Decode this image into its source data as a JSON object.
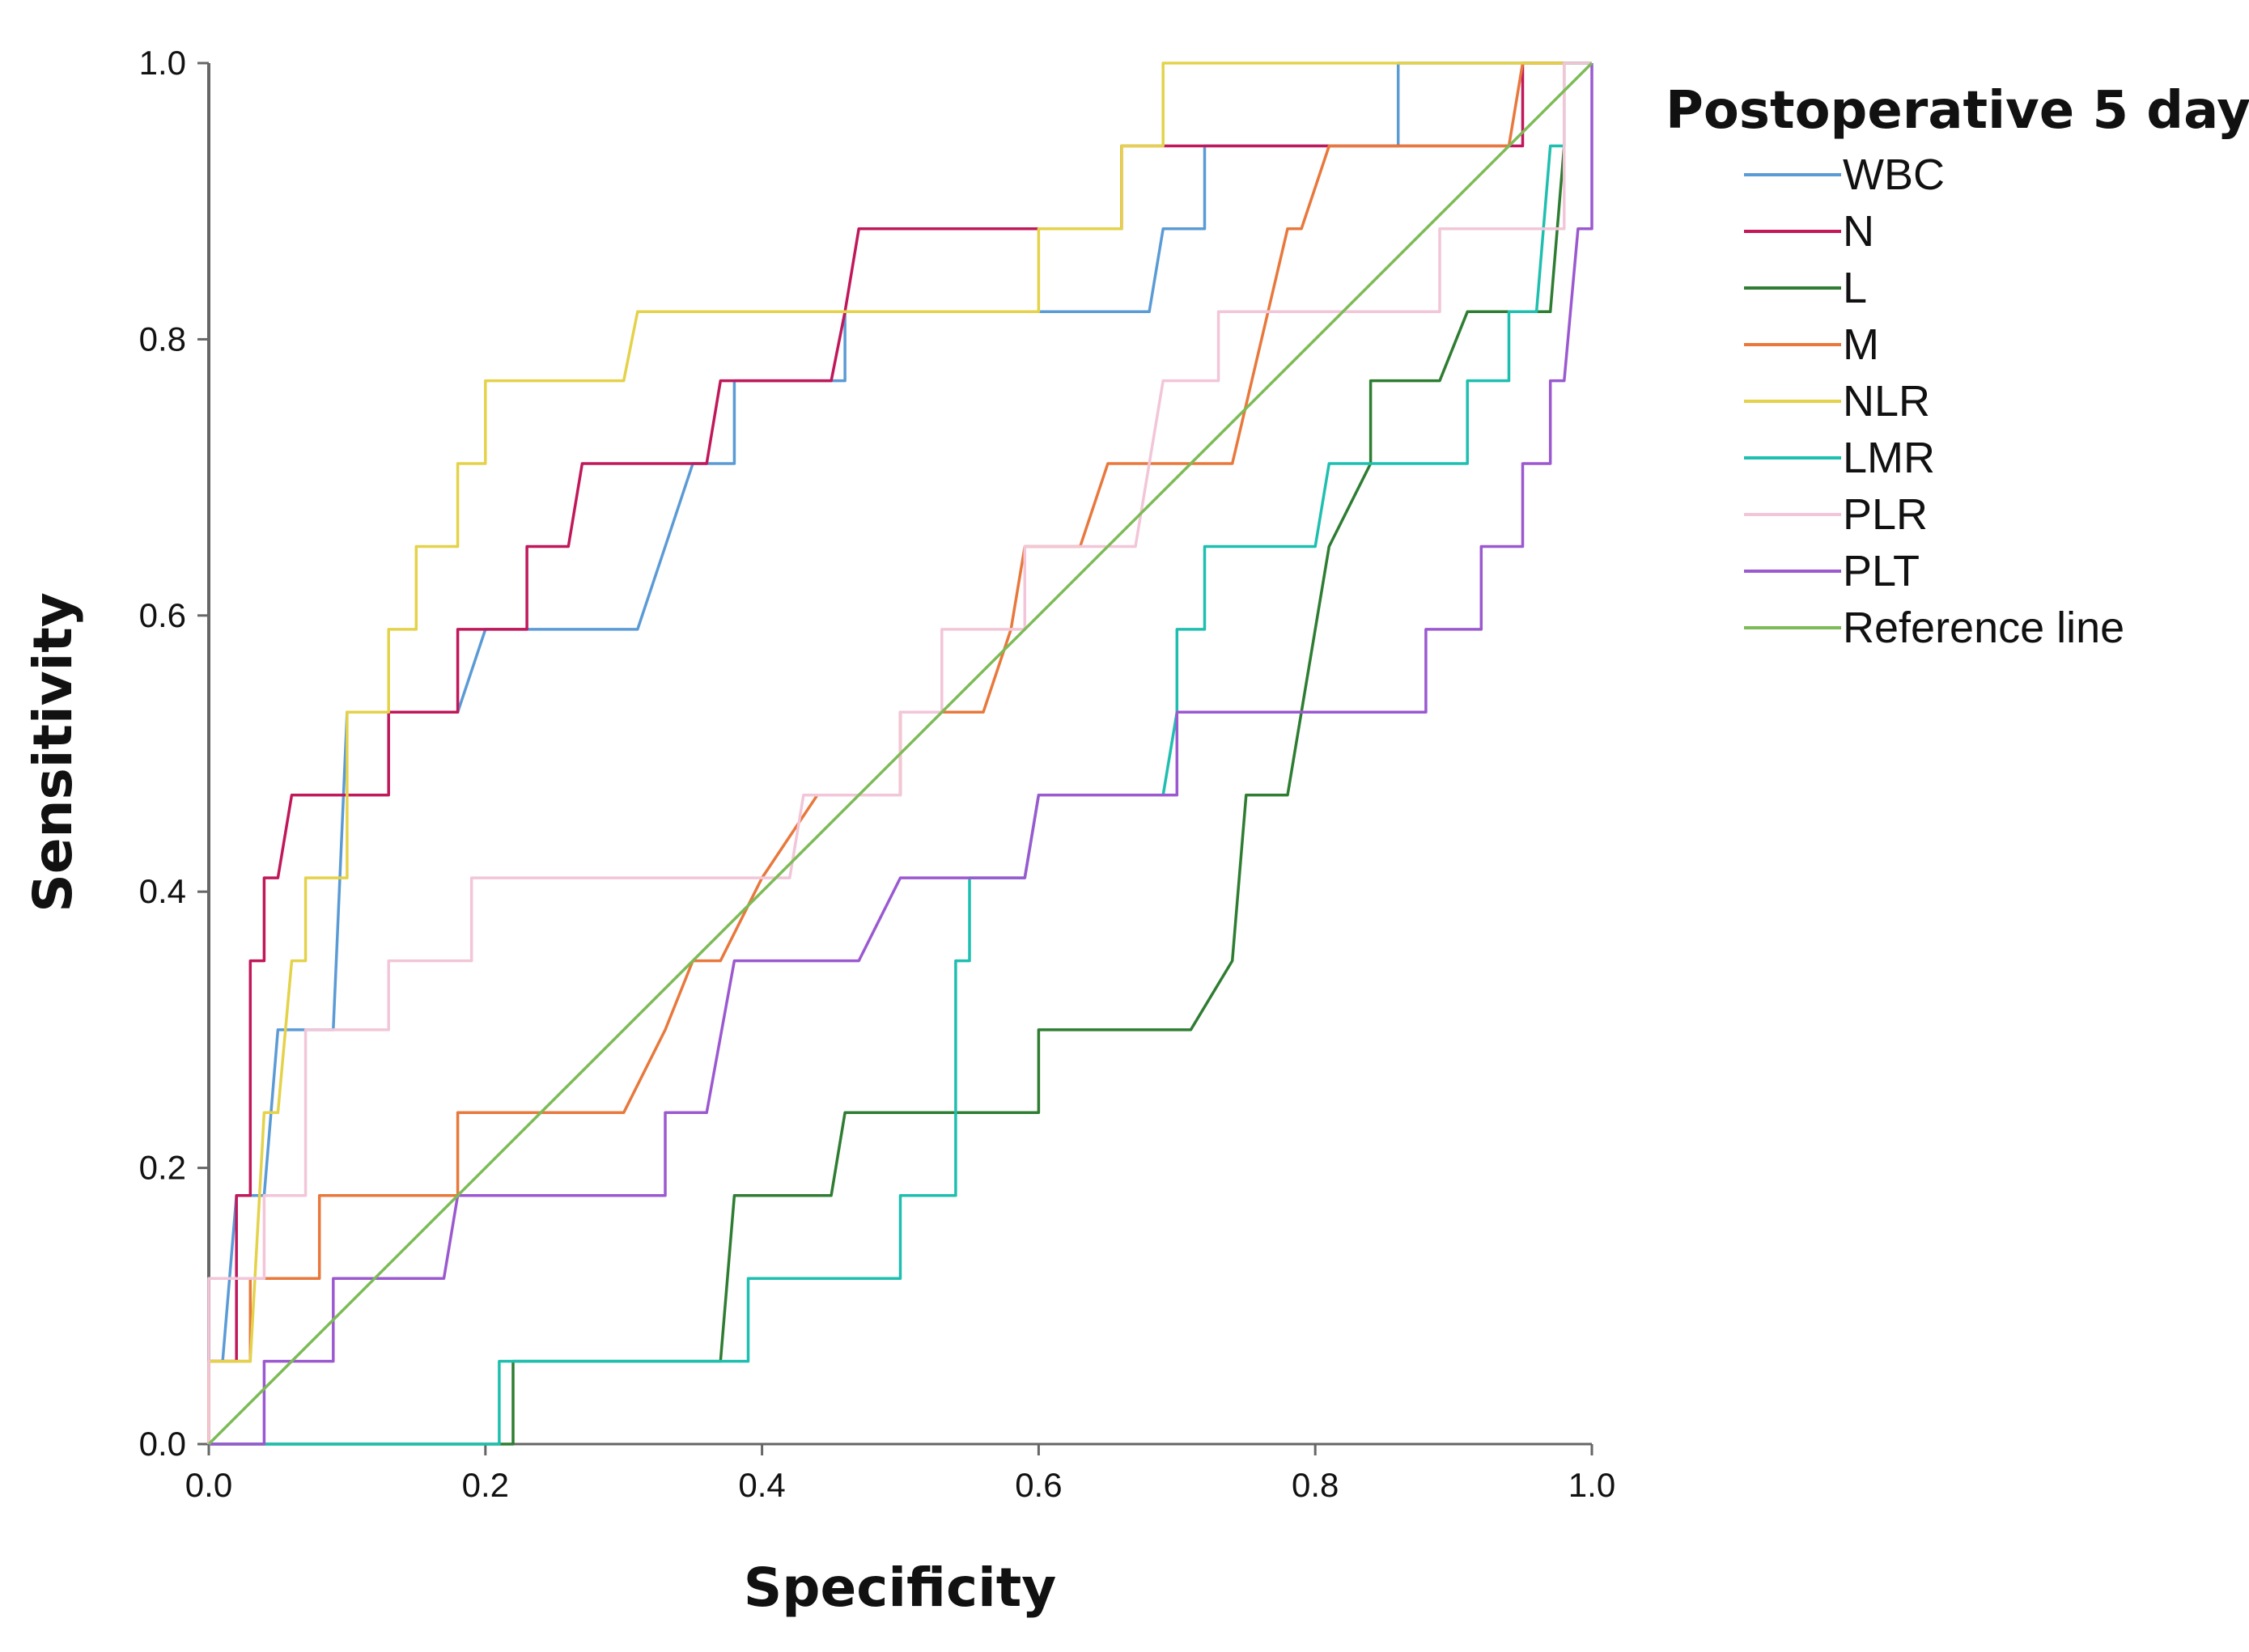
{
  "chart_data": {
    "type": "line",
    "title": "",
    "xlabel": "Specificity",
    "ylabel": "Sensitivity",
    "xlim": [
      0,
      1
    ],
    "ylim": [
      0,
      1
    ],
    "xticks": [
      "0.0",
      "0.2",
      "0.4",
      "0.6",
      "0.8",
      "1.0"
    ],
    "yticks": [
      "0.0",
      "0.2",
      "0.4",
      "0.6",
      "0.8",
      "1.0"
    ],
    "grid": false,
    "legend": {
      "title": "Postoperative 5 day",
      "position": "top-right outside"
    },
    "series": [
      {
        "name": "WBC",
        "color": "#5b9bd5",
        "points": [
          [
            0,
            0
          ],
          [
            0,
            0.06
          ],
          [
            0.01,
            0.06
          ],
          [
            0.02,
            0.18
          ],
          [
            0.04,
            0.18
          ],
          [
            0.05,
            0.3
          ],
          [
            0.09,
            0.3
          ],
          [
            0.1,
            0.53
          ],
          [
            0.18,
            0.53
          ],
          [
            0.2,
            0.59
          ],
          [
            0.31,
            0.59
          ],
          [
            0.33,
            0.65
          ],
          [
            0.35,
            0.71
          ],
          [
            0.38,
            0.71
          ],
          [
            0.38,
            0.77
          ],
          [
            0.46,
            0.77
          ],
          [
            0.46,
            0.82
          ],
          [
            0.68,
            0.82
          ],
          [
            0.69,
            0.88
          ],
          [
            0.72,
            0.88
          ],
          [
            0.72,
            0.94
          ],
          [
            0.86,
            0.94
          ],
          [
            0.86,
            1.0
          ],
          [
            1.0,
            1.0
          ]
        ]
      },
      {
        "name": "N",
        "color": "#c0185a",
        "points": [
          [
            0,
            0
          ],
          [
            0,
            0.06
          ],
          [
            0.02,
            0.06
          ],
          [
            0.02,
            0.18
          ],
          [
            0.03,
            0.18
          ],
          [
            0.03,
            0.35
          ],
          [
            0.04,
            0.35
          ],
          [
            0.04,
            0.41
          ],
          [
            0.05,
            0.41
          ],
          [
            0.06,
            0.47
          ],
          [
            0.13,
            0.47
          ],
          [
            0.13,
            0.53
          ],
          [
            0.18,
            0.53
          ],
          [
            0.18,
            0.59
          ],
          [
            0.23,
            0.59
          ],
          [
            0.23,
            0.65
          ],
          [
            0.26,
            0.65
          ],
          [
            0.27,
            0.71
          ],
          [
            0.36,
            0.71
          ],
          [
            0.37,
            0.77
          ],
          [
            0.45,
            0.77
          ],
          [
            0.46,
            0.82
          ],
          [
            0.47,
            0.88
          ],
          [
            0.66,
            0.88
          ],
          [
            0.66,
            0.94
          ],
          [
            0.95,
            0.94
          ],
          [
            0.95,
            1.0
          ],
          [
            1.0,
            1.0
          ]
        ]
      },
      {
        "name": "L",
        "color": "#2e7d32",
        "points": [
          [
            0,
            0
          ],
          [
            0.22,
            0
          ],
          [
            0.22,
            0.06
          ],
          [
            0.37,
            0.06
          ],
          [
            0.38,
            0.18
          ],
          [
            0.45,
            0.18
          ],
          [
            0.46,
            0.24
          ],
          [
            0.6,
            0.24
          ],
          [
            0.6,
            0.3
          ],
          [
            0.71,
            0.3
          ],
          [
            0.74,
            0.35
          ],
          [
            0.75,
            0.47
          ],
          [
            0.78,
            0.47
          ],
          [
            0.79,
            0.53
          ],
          [
            0.81,
            0.65
          ],
          [
            0.84,
            0.71
          ],
          [
            0.84,
            0.77
          ],
          [
            0.89,
            0.77
          ],
          [
            0.91,
            0.82
          ],
          [
            0.97,
            0.82
          ],
          [
            0.98,
            0.94
          ],
          [
            0.98,
            1.0
          ],
          [
            1.0,
            1.0
          ]
        ]
      },
      {
        "name": "M",
        "color": "#e8783c",
        "points": [
          [
            0,
            0
          ],
          [
            0,
            0.06
          ],
          [
            0.03,
            0.06
          ],
          [
            0.03,
            0.12
          ],
          [
            0.08,
            0.12
          ],
          [
            0.08,
            0.18
          ],
          [
            0.18,
            0.18
          ],
          [
            0.18,
            0.24
          ],
          [
            0.3,
            0.24
          ],
          [
            0.33,
            0.3
          ],
          [
            0.35,
            0.35
          ],
          [
            0.37,
            0.35
          ],
          [
            0.4,
            0.41
          ],
          [
            0.44,
            0.47
          ],
          [
            0.5,
            0.47
          ],
          [
            0.5,
            0.53
          ],
          [
            0.56,
            0.53
          ],
          [
            0.58,
            0.59
          ],
          [
            0.59,
            0.65
          ],
          [
            0.63,
            0.65
          ],
          [
            0.65,
            0.71
          ],
          [
            0.74,
            0.71
          ],
          [
            0.78,
            0.88
          ],
          [
            0.79,
            0.88
          ],
          [
            0.81,
            0.94
          ],
          [
            0.94,
            0.94
          ],
          [
            0.95,
            1.0
          ],
          [
            1.0,
            1.0
          ]
        ]
      },
      {
        "name": "NLR",
        "color": "#e4d24a",
        "points": [
          [
            0,
            0
          ],
          [
            0,
            0.06
          ],
          [
            0.03,
            0.06
          ],
          [
            0.04,
            0.24
          ],
          [
            0.05,
            0.24
          ],
          [
            0.06,
            0.35
          ],
          [
            0.07,
            0.35
          ],
          [
            0.07,
            0.41
          ],
          [
            0.1,
            0.41
          ],
          [
            0.1,
            0.53
          ],
          [
            0.13,
            0.53
          ],
          [
            0.13,
            0.59
          ],
          [
            0.15,
            0.59
          ],
          [
            0.15,
            0.65
          ],
          [
            0.18,
            0.65
          ],
          [
            0.18,
            0.71
          ],
          [
            0.2,
            0.71
          ],
          [
            0.2,
            0.77
          ],
          [
            0.3,
            0.77
          ],
          [
            0.31,
            0.82
          ],
          [
            0.6,
            0.82
          ],
          [
            0.6,
            0.88
          ],
          [
            0.66,
            0.88
          ],
          [
            0.66,
            0.94
          ],
          [
            0.69,
            0.94
          ],
          [
            0.69,
            1.0
          ],
          [
            1.0,
            1.0
          ]
        ]
      },
      {
        "name": "LMR",
        "color": "#1fbfb0",
        "points": [
          [
            0,
            0
          ],
          [
            0.21,
            0
          ],
          [
            0.21,
            0.06
          ],
          [
            0.39,
            0.06
          ],
          [
            0.39,
            0.12
          ],
          [
            0.5,
            0.12
          ],
          [
            0.5,
            0.18
          ],
          [
            0.54,
            0.18
          ],
          [
            0.54,
            0.35
          ],
          [
            0.55,
            0.35
          ],
          [
            0.55,
            0.41
          ],
          [
            0.59,
            0.41
          ],
          [
            0.6,
            0.47
          ],
          [
            0.69,
            0.47
          ],
          [
            0.7,
            0.53
          ],
          [
            0.7,
            0.59
          ],
          [
            0.72,
            0.59
          ],
          [
            0.72,
            0.65
          ],
          [
            0.8,
            0.65
          ],
          [
            0.81,
            0.71
          ],
          [
            0.91,
            0.71
          ],
          [
            0.91,
            0.77
          ],
          [
            0.94,
            0.77
          ],
          [
            0.94,
            0.82
          ],
          [
            0.96,
            0.82
          ],
          [
            0.97,
            0.94
          ],
          [
            0.98,
            0.94
          ],
          [
            0.98,
            1.0
          ],
          [
            1.0,
            1.0
          ]
        ]
      },
      {
        "name": "PLR",
        "color": "#f2c6d8",
        "points": [
          [
            0,
            0
          ],
          [
            0,
            0.12
          ],
          [
            0.04,
            0.12
          ],
          [
            0.04,
            0.18
          ],
          [
            0.07,
            0.18
          ],
          [
            0.07,
            0.3
          ],
          [
            0.13,
            0.3
          ],
          [
            0.13,
            0.35
          ],
          [
            0.19,
            0.35
          ],
          [
            0.19,
            0.41
          ],
          [
            0.42,
            0.41
          ],
          [
            0.43,
            0.47
          ],
          [
            0.5,
            0.47
          ],
          [
            0.5,
            0.53
          ],
          [
            0.53,
            0.53
          ],
          [
            0.53,
            0.59
          ],
          [
            0.59,
            0.59
          ],
          [
            0.59,
            0.65
          ],
          [
            0.67,
            0.65
          ],
          [
            0.69,
            0.77
          ],
          [
            0.73,
            0.77
          ],
          [
            0.73,
            0.82
          ],
          [
            0.89,
            0.82
          ],
          [
            0.89,
            0.88
          ],
          [
            0.98,
            0.88
          ],
          [
            0.98,
            1.0
          ],
          [
            1.0,
            1.0
          ]
        ]
      },
      {
        "name": "PLT",
        "color": "#9b59d0",
        "points": [
          [
            0,
            0
          ],
          [
            0.04,
            0
          ],
          [
            0.04,
            0.06
          ],
          [
            0.09,
            0.06
          ],
          [
            0.09,
            0.12
          ],
          [
            0.17,
            0.12
          ],
          [
            0.18,
            0.18
          ],
          [
            0.33,
            0.18
          ],
          [
            0.33,
            0.24
          ],
          [
            0.36,
            0.24
          ],
          [
            0.38,
            0.35
          ],
          [
            0.47,
            0.35
          ],
          [
            0.5,
            0.41
          ],
          [
            0.59,
            0.41
          ],
          [
            0.6,
            0.47
          ],
          [
            0.7,
            0.47
          ],
          [
            0.7,
            0.53
          ],
          [
            0.88,
            0.53
          ],
          [
            0.88,
            0.59
          ],
          [
            0.92,
            0.59
          ],
          [
            0.92,
            0.65
          ],
          [
            0.95,
            0.65
          ],
          [
            0.95,
            0.71
          ],
          [
            0.97,
            0.71
          ],
          [
            0.97,
            0.77
          ],
          [
            0.98,
            0.77
          ],
          [
            0.99,
            0.88
          ],
          [
            1.0,
            0.88
          ],
          [
            1.0,
            1.0
          ]
        ]
      },
      {
        "name": "Reference line",
        "color": "#7dbb57",
        "points": [
          [
            0,
            0
          ],
          [
            1,
            1
          ]
        ]
      }
    ]
  }
}
